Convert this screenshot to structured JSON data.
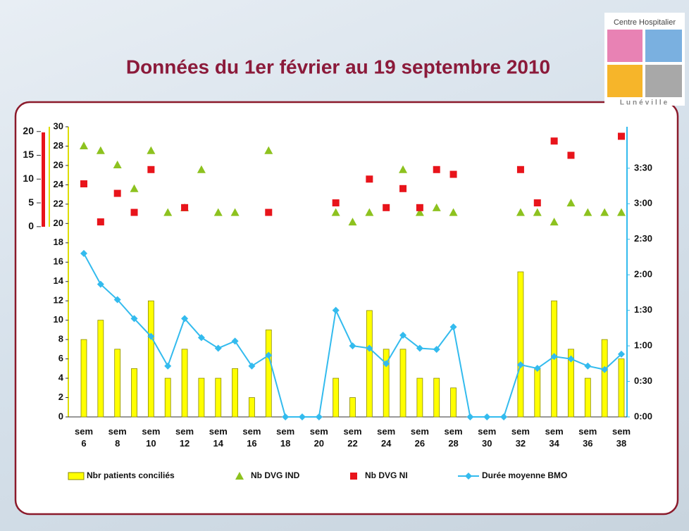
{
  "header": {
    "title": "Données du 1er février au 19 septembre 2010"
  },
  "logo": {
    "top_text": "Centre Hospitalier",
    "bottom_text": "Lunéville"
  },
  "chart_data": {
    "type": "combo",
    "categories": [
      "sem 6",
      null,
      "sem 8",
      null,
      "sem 10",
      null,
      "sem 12",
      null,
      "sem 14",
      null,
      "sem 16",
      null,
      "sem 18",
      null,
      "sem 20",
      null,
      "sem 22",
      null,
      "sem 24",
      null,
      "sem 26",
      null,
      "sem 28",
      null,
      "sem 30",
      null,
      "sem 32",
      null,
      "sem 34",
      null,
      "sem 36",
      null,
      "sem 38"
    ],
    "ylim": [
      0,
      30
    ],
    "yticks": [
      0,
      2,
      4,
      6,
      8,
      10,
      12,
      14,
      16,
      18,
      20,
      22,
      24,
      26,
      28,
      30
    ],
    "y2lim": [
      0,
      245
    ],
    "y2ticks": [
      {
        "value": 0,
        "label": "0:00"
      },
      {
        "value": 30,
        "label": "0:30"
      },
      {
        "value": 60,
        "label": "1:00"
      },
      {
        "value": 90,
        "label": "1:30"
      },
      {
        "value": 120,
        "label": "2:00"
      },
      {
        "value": 150,
        "label": "2:30"
      },
      {
        "value": 180,
        "label": "3:00"
      },
      {
        "value": 210,
        "label": "3:30"
      }
    ],
    "y3lim": [
      -40,
      21
    ],
    "y3ticks": [
      0,
      5,
      10,
      15,
      20
    ],
    "series": [
      {
        "name": "Nbr patients conciliés",
        "type": "bar",
        "color": "#ffff00",
        "axis": "y",
        "values": [
          8,
          10,
          7,
          5,
          12,
          4,
          7,
          4,
          4,
          5,
          2,
          9,
          0,
          0,
          0,
          4,
          2,
          11,
          7,
          7,
          4,
          4,
          3,
          0,
          0,
          0,
          15,
          5,
          12,
          7,
          4,
          8,
          6
        ]
      },
      {
        "name": "Nb DVG IND",
        "type": "scatter",
        "marker": "triangle",
        "color": "#8dc21f",
        "axis": "y3",
        "values": [
          17,
          16,
          13,
          8,
          16,
          3,
          4,
          12,
          3,
          3,
          null,
          16,
          null,
          null,
          null,
          3,
          1,
          3,
          null,
          12,
          3,
          4,
          3,
          null,
          null,
          null,
          3,
          3,
          1,
          5,
          3,
          3,
          3
        ]
      },
      {
        "name": "Nb DVG NI",
        "type": "scatter",
        "marker": "square",
        "color": "#e8141b",
        "axis": "y3",
        "values": [
          9,
          1,
          7,
          3,
          12,
          null,
          4,
          null,
          null,
          null,
          null,
          3,
          null,
          null,
          null,
          5,
          null,
          10,
          4,
          8,
          4,
          12,
          11,
          null,
          null,
          null,
          12,
          5,
          18,
          15,
          null,
          null,
          19
        ]
      },
      {
        "name": "Durée moyenne BMO",
        "type": "line",
        "marker": "diamond",
        "color": "#33bbee",
        "axis": "y2",
        "values": [
          138,
          112,
          99,
          83,
          68,
          43,
          83,
          67,
          58,
          64,
          43,
          52,
          0,
          0,
          0,
          90,
          60,
          58,
          45,
          69,
          58,
          57,
          76,
          0,
          0,
          0,
          44,
          41,
          51,
          49,
          43,
          40,
          53
        ]
      }
    ]
  }
}
